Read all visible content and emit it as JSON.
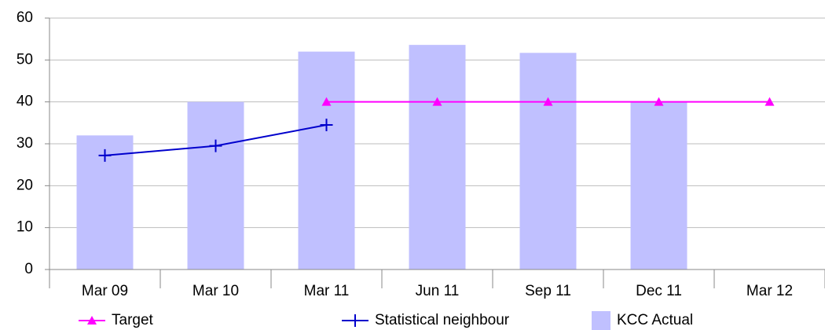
{
  "chart_data": {
    "type": "combo",
    "categories": [
      "Mar 09",
      "Mar 10",
      "Mar 11",
      "Jun 11",
      "Sep 11",
      "Dec 11",
      "Mar 12"
    ],
    "series": [
      {
        "name": "Target",
        "type": "line",
        "marker": "triangle",
        "color": "#ff00ff",
        "values": [
          null,
          null,
          40,
          40,
          40,
          40,
          40
        ]
      },
      {
        "name": "Statistical neighbour",
        "type": "line",
        "marker": "plus",
        "color": "#0000cc",
        "values": [
          27.2,
          29.5,
          34.5,
          null,
          null,
          null,
          null
        ]
      },
      {
        "name": "KCC Actual",
        "type": "bar",
        "color": "#c0c0ff",
        "values": [
          32,
          40,
          52,
          53.6,
          51.7,
          40,
          null
        ]
      }
    ],
    "ylim": [
      0,
      60
    ],
    "yticks": [
      0,
      10,
      20,
      30,
      40,
      50,
      60
    ],
    "grid": true,
    "legend": "bottom"
  }
}
